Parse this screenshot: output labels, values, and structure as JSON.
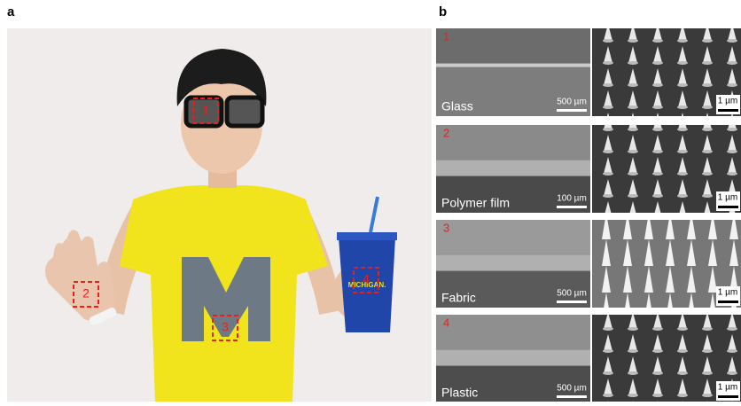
{
  "panel_a": {
    "label": "a",
    "markers": [
      "1",
      "2",
      "3",
      "4"
    ],
    "cup_text": "MICHIGAN."
  },
  "panel_b": {
    "label": "b",
    "rows": [
      {
        "number": "1",
        "substrate": "Glass",
        "scale_left": "500 µm",
        "scale_right": "1 µm"
      },
      {
        "number": "2",
        "substrate": "Polymer film",
        "scale_left": "100 µm",
        "scale_right": "1 µm"
      },
      {
        "number": "3",
        "substrate": "Fabric",
        "scale_left": "500 µm",
        "scale_right": "1 µm"
      },
      {
        "number": "4",
        "substrate": "Plastic",
        "scale_left": "500 µm",
        "scale_right": "1 µm"
      }
    ]
  }
}
